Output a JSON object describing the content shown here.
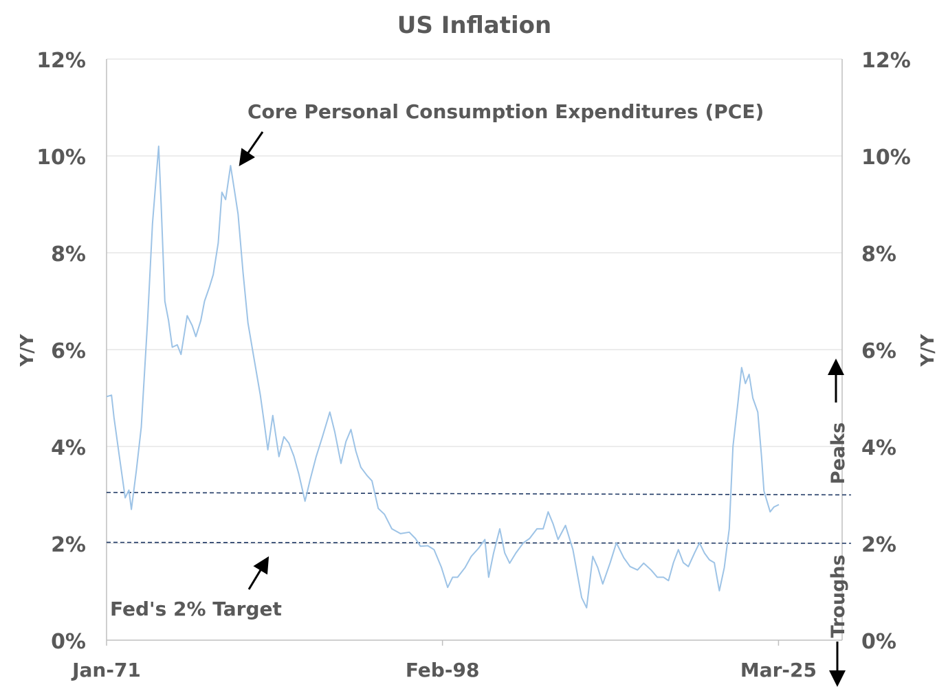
{
  "chart_data": {
    "type": "line",
    "title": "US Inflation",
    "ylabel_left": "Y/Y",
    "ylabel_right": "Y/Y",
    "ylim": [
      0,
      12
    ],
    "yticks": [
      "0%",
      "2%",
      "4%",
      "6%",
      "8%",
      "10%",
      "12%"
    ],
    "xticks": [
      {
        "label": "Jan-71",
        "x": 1971.0
      },
      {
        "label": "Feb-98",
        "x": 1998.08
      },
      {
        "label": "Mar-25",
        "x": 2025.17
      }
    ],
    "xlim": [
      1971.0,
      2030.3
    ],
    "grid": true,
    "series": [
      {
        "name": "Core Personal Consumption Expenditures (PCE)",
        "color": "#9dc3e6",
        "points": [
          [
            1971.0,
            5.03
          ],
          [
            1971.4,
            5.06
          ],
          [
            1971.6,
            4.6
          ],
          [
            1972.0,
            3.86
          ],
          [
            1972.5,
            2.94
          ],
          [
            1972.8,
            3.1
          ],
          [
            1973.0,
            2.7
          ],
          [
            1973.4,
            3.5
          ],
          [
            1973.8,
            4.4
          ],
          [
            1974.3,
            6.55
          ],
          [
            1974.7,
            8.6
          ],
          [
            1975.2,
            10.2
          ],
          [
            1975.4,
            9.0
          ],
          [
            1975.7,
            7.0
          ],
          [
            1976.0,
            6.6
          ],
          [
            1976.3,
            6.05
          ],
          [
            1976.7,
            6.1
          ],
          [
            1977.0,
            5.9
          ],
          [
            1977.5,
            6.7
          ],
          [
            1977.9,
            6.5
          ],
          [
            1978.2,
            6.27
          ],
          [
            1978.6,
            6.6
          ],
          [
            1978.9,
            7.0
          ],
          [
            1979.3,
            7.3
          ],
          [
            1979.6,
            7.55
          ],
          [
            1980.0,
            8.2
          ],
          [
            1980.3,
            9.25
          ],
          [
            1980.6,
            9.1
          ],
          [
            1981.0,
            9.8
          ],
          [
            1981.3,
            9.3
          ],
          [
            1981.6,
            8.8
          ],
          [
            1982.0,
            7.6
          ],
          [
            1982.4,
            6.55
          ],
          [
            1982.9,
            5.8
          ],
          [
            1983.4,
            5.06
          ],
          [
            1983.7,
            4.5
          ],
          [
            1984.0,
            3.93
          ],
          [
            1984.4,
            4.64
          ],
          [
            1984.9,
            3.79
          ],
          [
            1985.3,
            4.2
          ],
          [
            1985.7,
            4.07
          ],
          [
            1986.1,
            3.8
          ],
          [
            1986.5,
            3.43
          ],
          [
            1987.0,
            2.87
          ],
          [
            1987.4,
            3.3
          ],
          [
            1987.9,
            3.79
          ],
          [
            1988.4,
            4.2
          ],
          [
            1989.0,
            4.71
          ],
          [
            1989.4,
            4.3
          ],
          [
            1989.9,
            3.65
          ],
          [
            1990.3,
            4.1
          ],
          [
            1990.7,
            4.35
          ],
          [
            1991.1,
            3.9
          ],
          [
            1991.5,
            3.57
          ],
          [
            1992.0,
            3.4
          ],
          [
            1992.4,
            3.29
          ],
          [
            1992.9,
            2.72
          ],
          [
            1993.4,
            2.6
          ],
          [
            1994.0,
            2.3
          ],
          [
            1994.7,
            2.2
          ],
          [
            1995.4,
            2.23
          ],
          [
            1995.9,
            2.1
          ],
          [
            1996.3,
            1.94
          ],
          [
            1996.9,
            1.95
          ],
          [
            1997.4,
            1.87
          ],
          [
            1998.0,
            1.5
          ],
          [
            1998.5,
            1.09
          ],
          [
            1998.9,
            1.3
          ],
          [
            1999.3,
            1.3
          ],
          [
            1999.9,
            1.5
          ],
          [
            2000.4,
            1.73
          ],
          [
            2001.0,
            1.9
          ],
          [
            2001.5,
            2.08
          ],
          [
            2001.8,
            1.3
          ],
          [
            2002.2,
            1.8
          ],
          [
            2002.7,
            2.3
          ],
          [
            2003.1,
            1.8
          ],
          [
            2003.5,
            1.59
          ],
          [
            2004.0,
            1.8
          ],
          [
            2004.6,
            2.01
          ],
          [
            2005.1,
            2.1
          ],
          [
            2005.7,
            2.3
          ],
          [
            2006.2,
            2.3
          ],
          [
            2006.6,
            2.65
          ],
          [
            2007.0,
            2.4
          ],
          [
            2007.4,
            2.08
          ],
          [
            2008.0,
            2.37
          ],
          [
            2008.6,
            1.87
          ],
          [
            2009.0,
            1.3
          ],
          [
            2009.3,
            0.88
          ],
          [
            2009.7,
            0.67
          ],
          [
            2010.2,
            1.73
          ],
          [
            2010.6,
            1.5
          ],
          [
            2011.0,
            1.16
          ],
          [
            2011.6,
            1.6
          ],
          [
            2012.1,
            2.01
          ],
          [
            2012.7,
            1.7
          ],
          [
            2013.2,
            1.52
          ],
          [
            2013.8,
            1.45
          ],
          [
            2014.3,
            1.59
          ],
          [
            2014.9,
            1.45
          ],
          [
            2015.4,
            1.3
          ],
          [
            2015.9,
            1.3
          ],
          [
            2016.3,
            1.23
          ],
          [
            2016.7,
            1.6
          ],
          [
            2017.1,
            1.87
          ],
          [
            2017.5,
            1.6
          ],
          [
            2017.9,
            1.52
          ],
          [
            2018.4,
            1.8
          ],
          [
            2018.8,
            2.01
          ],
          [
            2019.2,
            1.8
          ],
          [
            2019.6,
            1.66
          ],
          [
            2020.0,
            1.6
          ],
          [
            2020.4,
            1.02
          ],
          [
            2020.8,
            1.5
          ],
          [
            2021.2,
            2.3
          ],
          [
            2021.5,
            4.0
          ],
          [
            2021.9,
            4.9
          ],
          [
            2022.2,
            5.63
          ],
          [
            2022.5,
            5.3
          ],
          [
            2022.8,
            5.49
          ],
          [
            2023.1,
            5.0
          ],
          [
            2023.5,
            4.71
          ],
          [
            2023.8,
            3.8
          ],
          [
            2024.0,
            3.08
          ],
          [
            2024.5,
            2.65
          ],
          [
            2024.8,
            2.75
          ],
          [
            2025.2,
            2.8
          ]
        ]
      }
    ],
    "reference_lines": [
      {
        "name": "Peaks",
        "y_start": 3.05,
        "y_end": 3.0,
        "color": "#1f3864",
        "style": "dashed"
      },
      {
        "name": "Troughs",
        "y_start": 2.02,
        "y_end": 2.0,
        "color": "#1f3864",
        "style": "dashed"
      }
    ],
    "annotations": {
      "pce_label": "Core Personal Consumption Expenditures (PCE)",
      "fed_target": "Fed's 2% Target",
      "peaks": "Peaks",
      "troughs": "Troughs"
    }
  }
}
